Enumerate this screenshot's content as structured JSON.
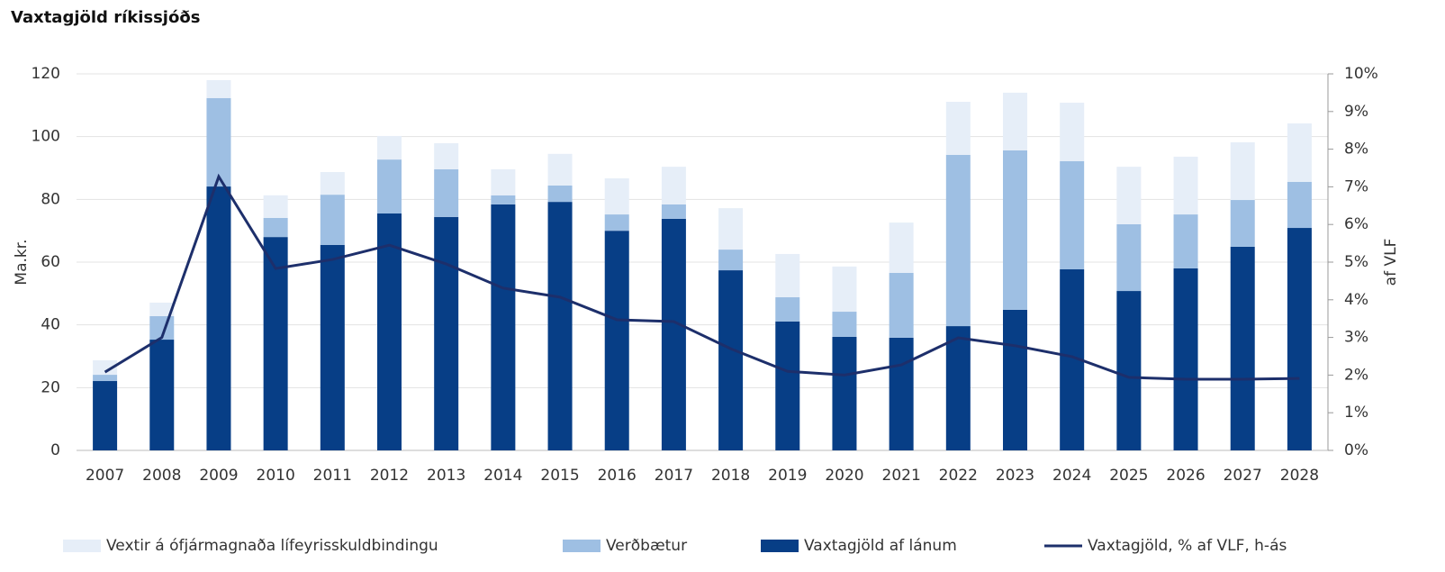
{
  "chart_data": {
    "type": "bar",
    "stacked": true,
    "title": "Vaxtagjöld ríkissjóðs",
    "ylabel": "Ma.kr.",
    "y2label": "af VLF",
    "categories": [
      "2007",
      "2008",
      "2009",
      "2010",
      "2011",
      "2012",
      "2013",
      "2014",
      "2015",
      "2016",
      "2017",
      "2018",
      "2019",
      "2020",
      "2021",
      "2022",
      "2023",
      "2024",
      "2025",
      "2026",
      "2027",
      "2028"
    ],
    "series": [
      {
        "name": "Vaxtagjöld af lánum",
        "type": "bar",
        "color": "#073e86",
        "values": [
          22.1,
          35.3,
          84.1,
          68,
          65.5,
          75.5,
          74.4,
          78.4,
          79.2,
          70,
          73.8,
          57.4,
          41.1,
          36.2,
          35.9,
          39.6,
          44.8,
          57.7,
          50.8,
          58,
          64.9,
          70.9
        ]
      },
      {
        "name": "Verðbætur",
        "type": "bar",
        "color": "#9ebfe3",
        "values": [
          2,
          7.5,
          28.2,
          6.1,
          16,
          17.2,
          15.2,
          2.9,
          5.2,
          5.2,
          4.6,
          6.6,
          7.7,
          8,
          20.7,
          54.6,
          50.8,
          34.5,
          21.3,
          17.2,
          14.9,
          14.7
        ]
      },
      {
        "name": "Vextir á ófjármagnaða lífeyrisskuldbindingu",
        "type": "bar",
        "color": "#e6eef8",
        "values": [
          4.6,
          4.3,
          5.7,
          7.2,
          7.2,
          7.5,
          8.3,
          8.3,
          10.1,
          11.5,
          12,
          13.2,
          13.8,
          14.4,
          16,
          16.9,
          18.4,
          18.6,
          18.3,
          18.4,
          18.4,
          18.6
        ]
      },
      {
        "name": "Vaxtagjöld, % af VLF, h-ás",
        "type": "line",
        "axis": "y2",
        "color": "#1d2f6b",
        "values": [
          2.08,
          3.0,
          7.27,
          4.83,
          5.07,
          5.45,
          4.95,
          4.31,
          4.07,
          3.47,
          3.42,
          2.7,
          2.1,
          2.0,
          2.27,
          2.99,
          2.78,
          2.49,
          1.94,
          1.89,
          1.89,
          1.91
        ]
      }
    ],
    "legend_order": [
      2,
      1,
      0,
      3
    ],
    "ylim": [
      0,
      120
    ],
    "yticks": [
      0,
      20,
      40,
      60,
      80,
      100,
      120
    ],
    "y2lim": [
      0,
      10
    ],
    "y2ticks": [
      {
        "value": 0,
        "label": "0%"
      },
      {
        "value": 1,
        "label": "1%"
      },
      {
        "value": 2,
        "label": "2%"
      },
      {
        "value": 3,
        "label": "3%"
      },
      {
        "value": 4,
        "label": "4%"
      },
      {
        "value": 5,
        "label": "5%"
      },
      {
        "value": 6,
        "label": "6%"
      },
      {
        "value": 7,
        "label": "7%"
      },
      {
        "value": 8,
        "label": "8%"
      },
      {
        "value": 9,
        "label": "9%"
      },
      {
        "value": 10,
        "label": "10%"
      }
    ],
    "grid": true
  }
}
